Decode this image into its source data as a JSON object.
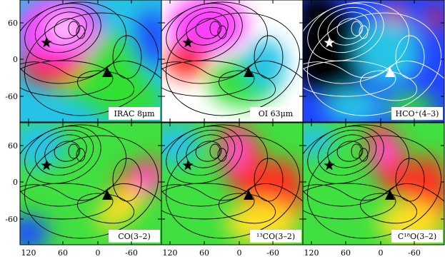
{
  "panels": [
    {
      "label": "IRAC 8μm"
    },
    {
      "label": "OI 63μm"
    },
    {
      "label": "HCO⁺(4–3)"
    },
    {
      "label": "CO(3–2)"
    },
    {
      "label": "¹³CO(3–2)"
    },
    {
      "label": "C¹⁸O(3–2)"
    }
  ],
  "yticks": [
    "60",
    "0",
    "-60"
  ],
  "xticks": [
    "120",
    "60",
    "0",
    "-60"
  ]
}
